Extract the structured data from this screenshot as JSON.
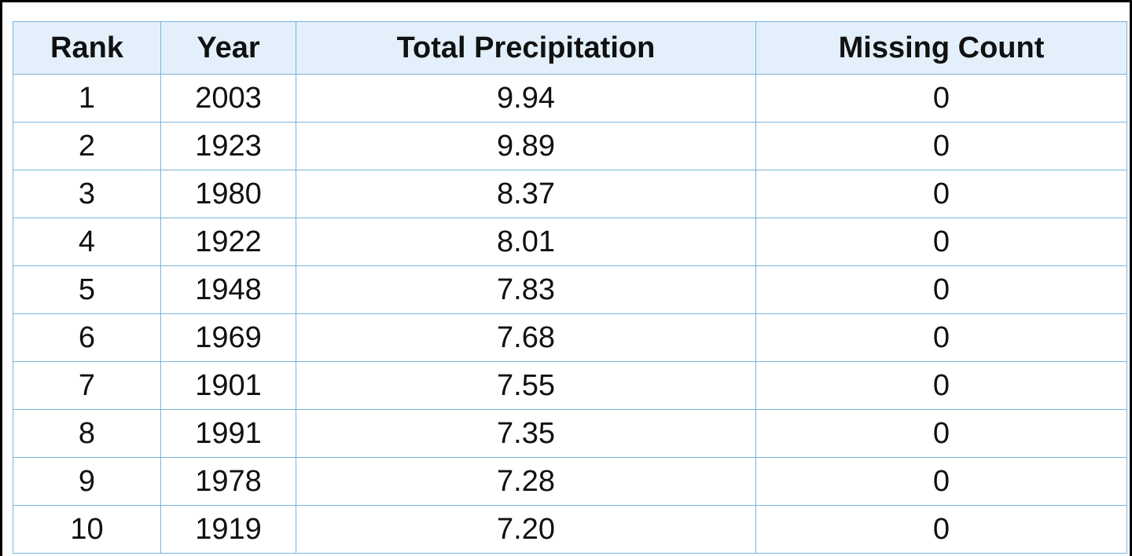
{
  "table": {
    "headers": [
      "Rank",
      "Year",
      "Total Precipitation",
      "Missing Count"
    ],
    "rows": [
      [
        "1",
        "2003",
        "9.94",
        "0"
      ],
      [
        "2",
        "1923",
        "9.89",
        "0"
      ],
      [
        "3",
        "1980",
        "8.37",
        "0"
      ],
      [
        "4",
        "1922",
        "8.01",
        "0"
      ],
      [
        "5",
        "1948",
        "7.83",
        "0"
      ],
      [
        "6",
        "1969",
        "7.68",
        "0"
      ],
      [
        "7",
        "1901",
        "7.55",
        "0"
      ],
      [
        "8",
        "1991",
        "7.35",
        "0"
      ],
      [
        "9",
        "1978",
        "7.28",
        "0"
      ],
      [
        "10",
        "1919",
        "7.20",
        "0"
      ]
    ]
  },
  "colors": {
    "header_background": "#e3f0fb",
    "grid_line": "#7ab3dc",
    "frame_border": "#000000"
  }
}
